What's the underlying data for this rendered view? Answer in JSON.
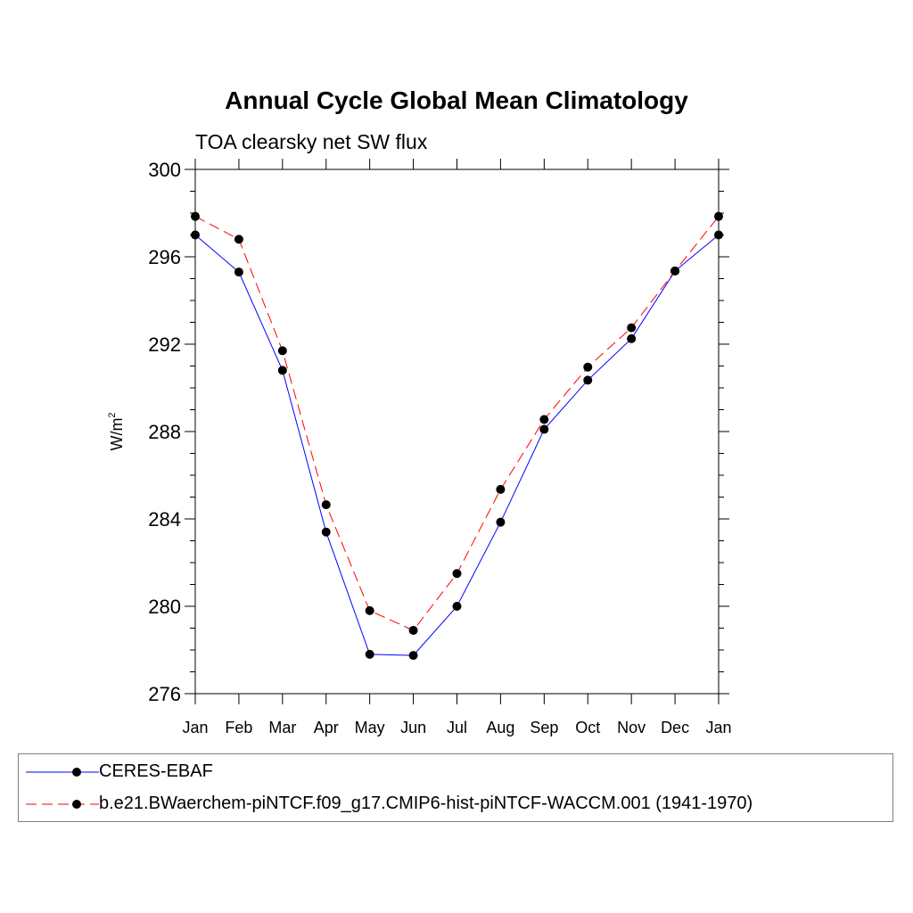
{
  "chart_data": {
    "type": "line",
    "title": "Annual Cycle Global Mean Climatology",
    "subtitle": "TOA clearsky net SW flux",
    "ylabel_main": "W/m",
    "ylabel_sup": "2",
    "xlabel": "",
    "categories": [
      "Jan",
      "Feb",
      "Mar",
      "Apr",
      "May",
      "Jun",
      "Jul",
      "Aug",
      "Sep",
      "Oct",
      "Nov",
      "Dec",
      "Jan"
    ],
    "ylim": [
      276,
      300
    ],
    "yticks": [
      276,
      280,
      284,
      288,
      292,
      296,
      300
    ],
    "grid": false,
    "legend_position": "bottom",
    "series": [
      {
        "name": "CERES-EBAF",
        "color": "#0000ff",
        "dash": "solid",
        "values": [
          297.0,
          295.3,
          290.8,
          283.4,
          277.8,
          277.75,
          280.0,
          283.85,
          288.1,
          290.35,
          292.25,
          295.35,
          297.0
        ]
      },
      {
        "name": "b.e21.BWaerchem-piNTCF.f09_g17.CMIP6-hist-piNTCF-WACCM.001 (1941-1970)",
        "color": "#ff0000",
        "dash": "dashed",
        "values": [
          297.85,
          296.8,
          291.7,
          284.65,
          279.8,
          278.9,
          281.5,
          285.35,
          288.55,
          290.95,
          292.75,
          295.35,
          297.85
        ]
      }
    ]
  }
}
